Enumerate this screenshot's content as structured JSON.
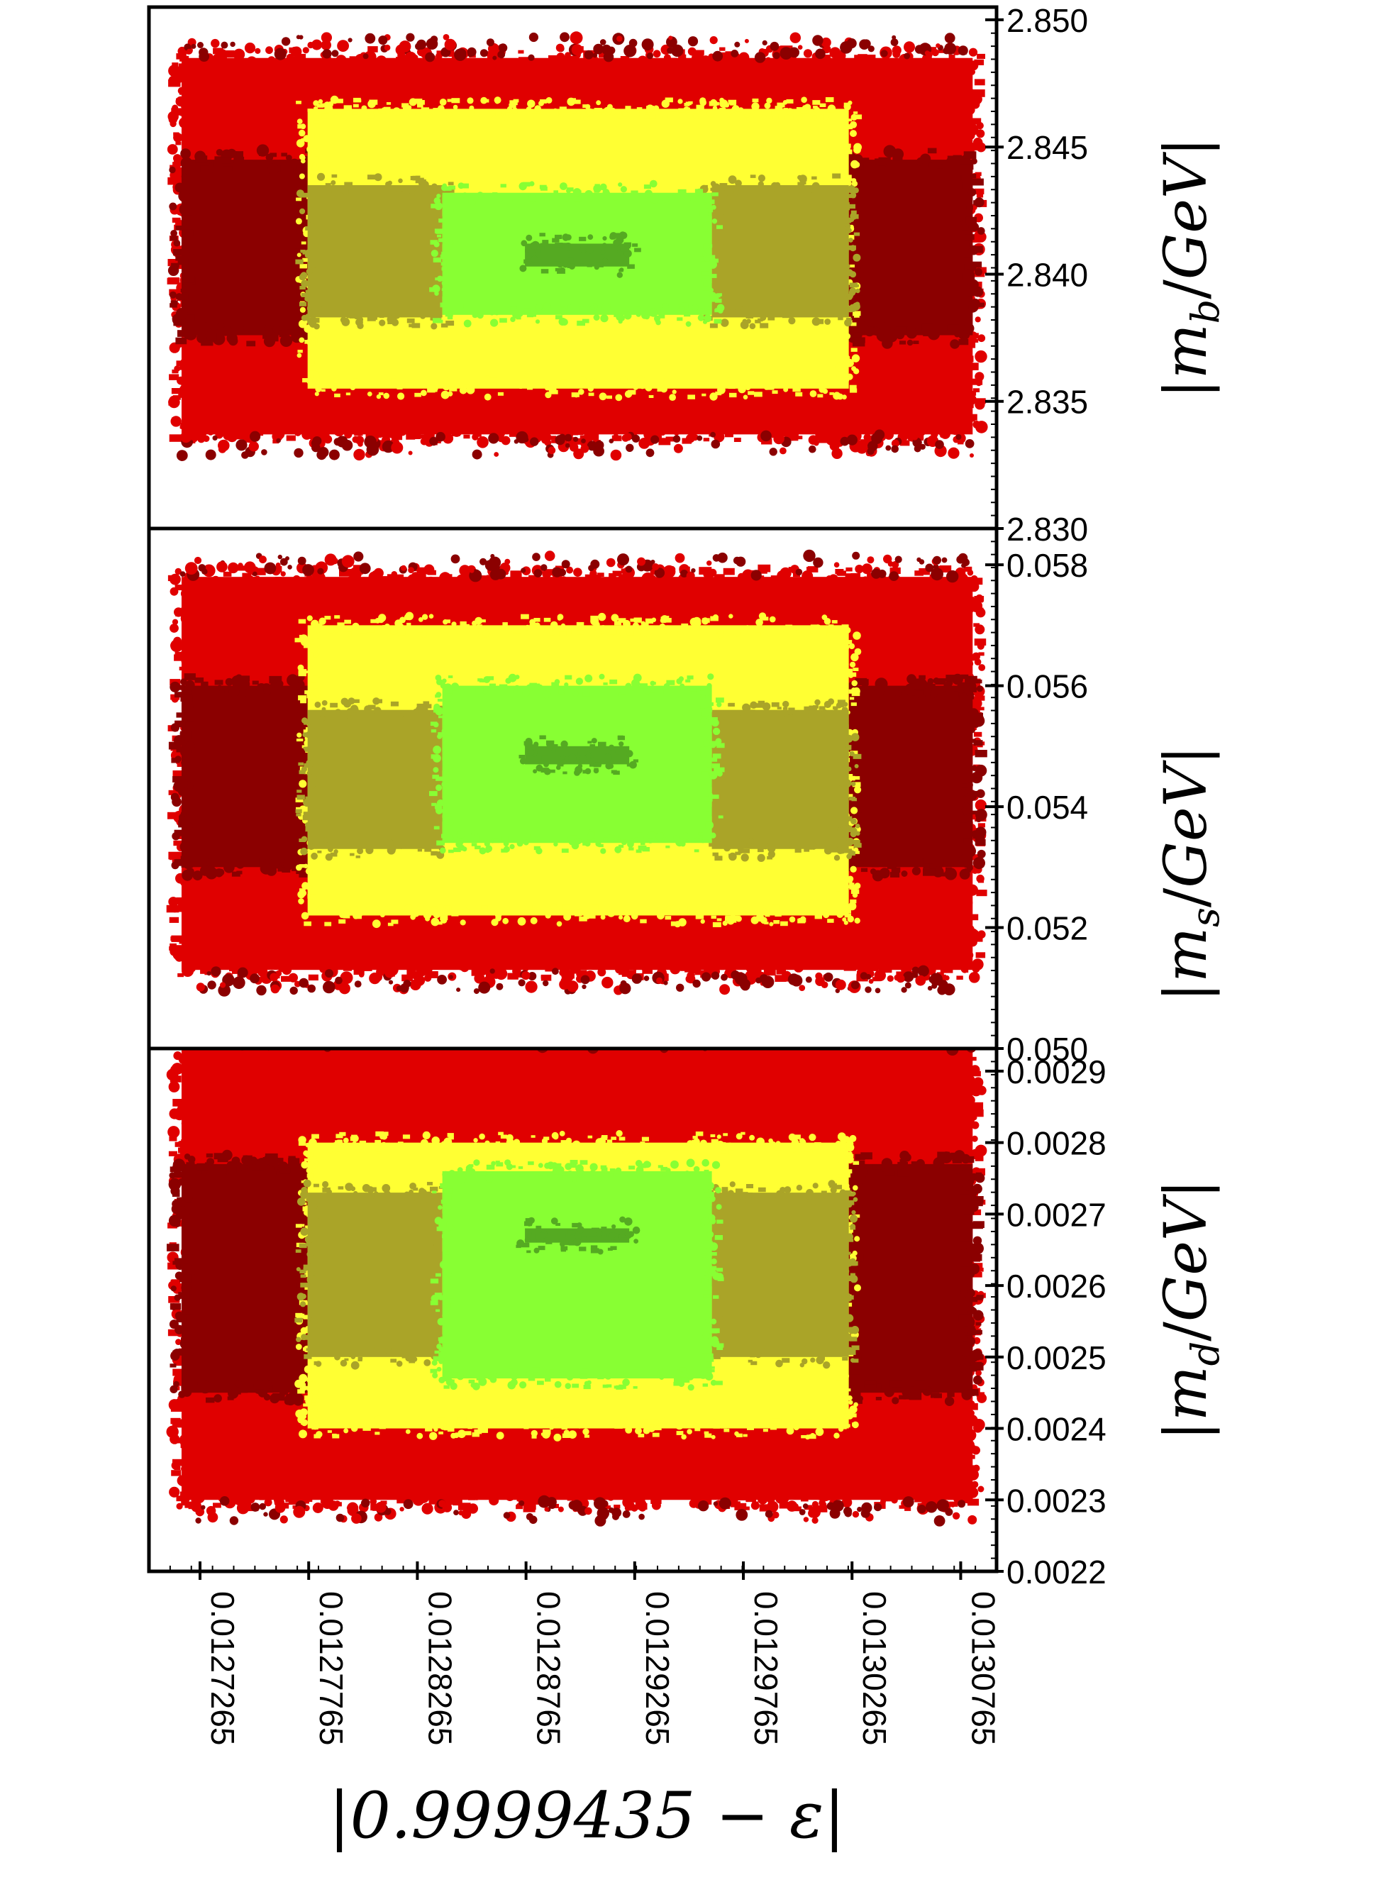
{
  "chart_data": {
    "type": "scatter",
    "layout": "three vertically stacked panels sharing one x axis",
    "xlabel": "|0.9999435 − ε|",
    "xlim": [
      0.012703,
      0.013093
    ],
    "x_ticks": [
      "0.0127265",
      "0.0127765",
      "0.0128265",
      "0.0128765",
      "0.0129265",
      "0.0129765",
      "0.0130265",
      "0.0130765"
    ],
    "x_tick_values": [
      0.0127265,
      0.0127765,
      0.0128265,
      0.0128765,
      0.0129265,
      0.0129765,
      0.0130265,
      0.0130765
    ],
    "y_tick_position": "right",
    "grid": false,
    "legend": "none",
    "colors": {
      "dark_red": "#8b0000",
      "red": "#e00000",
      "yellow": "#ffff33",
      "olive": "#aaa428",
      "light_green": "#88ff33",
      "mid_green": "#55aa22"
    },
    "panels": [
      {
        "ylabel_var": "m",
        "ylabel_sub": "b",
        "ylabel_unit": "GeV",
        "ylim": [
          2.83,
          2.8505
        ],
        "y_ticks": [
          "2.850",
          "2.845",
          "2.840",
          "2.835",
          "2.830"
        ],
        "y_tick_values": [
          2.85,
          2.845,
          2.84,
          2.835,
          2.83
        ],
        "regions": [
          {
            "color": "red",
            "x": [
              0.012718,
              0.013082
            ],
            "y": [
              2.8337,
              2.8485
            ]
          },
          {
            "color": "dark_red",
            "x": [
              0.012718,
              0.012776
            ],
            "y": [
              2.8376,
              2.8445
            ]
          },
          {
            "color": "dark_red",
            "x": [
              0.013025,
              0.013082
            ],
            "y": [
              2.8376,
              2.8445
            ]
          },
          {
            "color": "yellow",
            "x": [
              0.012776,
              0.013025
            ],
            "y": [
              2.8355,
              2.8465
            ]
          },
          {
            "color": "olive",
            "x": [
              0.012776,
              0.012838
            ],
            "y": [
              2.8383,
              2.8435
            ]
          },
          {
            "color": "olive",
            "x": [
              0.012962,
              0.013025
            ],
            "y": [
              2.8383,
              2.8435
            ]
          },
          {
            "color": "light_green",
            "x": [
              0.012838,
              0.012962
            ],
            "y": [
              2.8384,
              2.8432
            ]
          },
          {
            "color": "mid_green",
            "x": [
              0.012876,
              0.012924
            ],
            "y": [
              2.8403,
              2.8412
            ]
          }
        ]
      },
      {
        "ylabel_var": "m",
        "ylabel_sub": "s",
        "ylabel_unit": "GeV",
        "ylim": [
          0.05,
          0.0586
        ],
        "y_ticks": [
          "0.058",
          "0.056",
          "0.054",
          "0.052",
          "0.050"
        ],
        "y_tick_values": [
          0.058,
          0.056,
          0.054,
          0.052,
          0.05
        ],
        "regions": [
          {
            "color": "red",
            "x": [
              0.012718,
              0.013082
            ],
            "y": [
              0.0513,
              0.0578
            ]
          },
          {
            "color": "dark_red",
            "x": [
              0.012718,
              0.012776
            ],
            "y": [
              0.053,
              0.056
            ]
          },
          {
            "color": "dark_red",
            "x": [
              0.013025,
              0.013082
            ],
            "y": [
              0.053,
              0.056
            ]
          },
          {
            "color": "yellow",
            "x": [
              0.012776,
              0.013025
            ],
            "y": [
              0.0522,
              0.057
            ]
          },
          {
            "color": "olive",
            "x": [
              0.012776,
              0.012838
            ],
            "y": [
              0.0533,
              0.0556
            ]
          },
          {
            "color": "olive",
            "x": [
              0.012962,
              0.013025
            ],
            "y": [
              0.0533,
              0.0556
            ]
          },
          {
            "color": "light_green",
            "x": [
              0.012838,
              0.012962
            ],
            "y": [
              0.0534,
              0.056
            ]
          },
          {
            "color": "mid_green",
            "x": [
              0.012876,
              0.012924
            ],
            "y": [
              0.0547,
              0.055
            ]
          }
        ]
      },
      {
        "ylabel_var": "m",
        "ylabel_sub": "d",
        "ylabel_unit": "GeV",
        "ylim": [
          0.0022,
          0.0029317
        ],
        "y_ticks": [
          "0.0029",
          "0.0028",
          "0.0027",
          "0.0026",
          "0.0025",
          "0.0024",
          "0.0023",
          "0.0022"
        ],
        "y_tick_values": [
          0.0029,
          0.0028,
          0.0027,
          0.0026,
          0.0025,
          0.0024,
          0.0023,
          0.0022
        ],
        "regions": [
          {
            "color": "red",
            "x": [
              0.012718,
              0.013082
            ],
            "y": [
              0.0023,
              0.00293
            ]
          },
          {
            "color": "dark_red",
            "x": [
              0.012718,
              0.012776
            ],
            "y": [
              0.00245,
              0.00277
            ]
          },
          {
            "color": "dark_red",
            "x": [
              0.013025,
              0.013082
            ],
            "y": [
              0.00245,
              0.00277
            ]
          },
          {
            "color": "yellow",
            "x": [
              0.012776,
              0.013025
            ],
            "y": [
              0.0024,
              0.0028
            ]
          },
          {
            "color": "olive",
            "x": [
              0.012776,
              0.012838
            ],
            "y": [
              0.0025,
              0.00273
            ]
          },
          {
            "color": "olive",
            "x": [
              0.012962,
              0.013025
            ],
            "y": [
              0.0025,
              0.00273
            ]
          },
          {
            "color": "light_green",
            "x": [
              0.012838,
              0.012962
            ],
            "y": [
              0.00247,
              0.00276
            ]
          },
          {
            "color": "mid_green",
            "x": [
              0.012876,
              0.012924
            ],
            "y": [
              0.00266,
              0.00268
            ]
          }
        ]
      }
    ]
  }
}
